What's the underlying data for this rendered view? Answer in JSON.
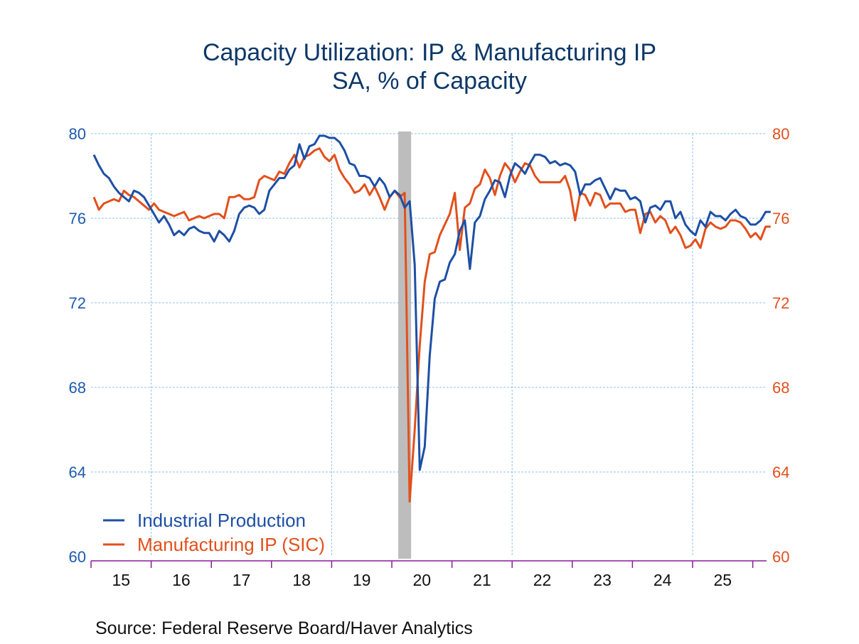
{
  "chart_data": {
    "type": "line",
    "title": "Capacity Utilization: IP & Manufacturing IP",
    "subtitle": "SA, % of Capacity",
    "source": "Source:  Federal Reserve Board/Haver Analytics",
    "xlabel": "",
    "ylabel_left": "",
    "ylabel_right": "",
    "x_start": "2015-01",
    "frequency": "monthly",
    "x_tick_labels": [
      "15",
      "16",
      "17",
      "18",
      "19",
      "20",
      "21",
      "22",
      "23",
      "24",
      "25"
    ],
    "ylim": [
      60,
      80
    ],
    "y_ticks": [
      80,
      76,
      72,
      68,
      64,
      60
    ],
    "grid": true,
    "legend_position": "bottom-left",
    "recession_shading": {
      "start": "2020-02",
      "end": "2020-04"
    },
    "series": [
      {
        "name": "Industrial Production",
        "color": "#1d4fa5",
        "axis": "left",
        "values": [
          79.0,
          78.5,
          78.1,
          77.9,
          77.5,
          77.2,
          77.0,
          76.8,
          77.3,
          77.2,
          77.0,
          76.6,
          76.2,
          75.8,
          76.1,
          75.7,
          75.2,
          75.4,
          75.2,
          75.5,
          75.6,
          75.4,
          75.3,
          75.3,
          74.9,
          75.4,
          75.2,
          74.9,
          75.4,
          76.2,
          76.5,
          76.6,
          76.5,
          76.2,
          76.4,
          77.3,
          77.6,
          77.9,
          77.9,
          78.3,
          78.5,
          79.5,
          78.8,
          79.4,
          79.5,
          79.9,
          79.9,
          79.8,
          79.8,
          79.6,
          79.2,
          78.6,
          78.5,
          78.0,
          78.0,
          77.9,
          77.5,
          77.9,
          77.6,
          77.0,
          77.3,
          77.1,
          76.5,
          76.8,
          73.8,
          64.1,
          65.2,
          69.5,
          72.2,
          73.0,
          73.1,
          73.9,
          74.3,
          75.4,
          75.9,
          73.6,
          75.8,
          76.1,
          76.9,
          77.3,
          77.8,
          77.7,
          77.0,
          78.0,
          78.6,
          78.4,
          78.1,
          78.6,
          79.0,
          79.0,
          78.9,
          78.6,
          78.7,
          78.5,
          78.6,
          78.5,
          78.2,
          77.1,
          77.6,
          77.6,
          77.8,
          77.9,
          77.4,
          76.9,
          77.4,
          77.3,
          77.3,
          76.9,
          77.0,
          76.8,
          75.8,
          76.5,
          76.6,
          76.4,
          76.8,
          76.8,
          76.0,
          76.3,
          75.7,
          75.4,
          75.2,
          75.9,
          75.6,
          76.3,
          76.1,
          76.1,
          75.9,
          76.2,
          76.4,
          76.1,
          76.0,
          75.7,
          75.7,
          75.9,
          76.3,
          76.3
        ]
      },
      {
        "name": "Manufacturing IP (SIC)",
        "color": "#e2501c",
        "axis": "right",
        "values": [
          77.0,
          76.4,
          76.7,
          76.8,
          76.9,
          76.8,
          77.3,
          77.1,
          77.0,
          76.8,
          76.6,
          76.4,
          76.7,
          76.4,
          76.3,
          76.2,
          76.1,
          76.2,
          76.3,
          75.9,
          76.0,
          76.1,
          76.0,
          76.1,
          76.2,
          76.2,
          76.0,
          77.0,
          77.0,
          77.1,
          76.9,
          76.9,
          77.0,
          77.8,
          78.0,
          77.9,
          77.8,
          78.2,
          78.1,
          78.6,
          79.0,
          78.4,
          78.9,
          79.0,
          79.2,
          79.3,
          78.9,
          78.7,
          79.0,
          78.3,
          77.9,
          77.6,
          77.2,
          77.3,
          77.6,
          77.1,
          77.5,
          77.0,
          76.4,
          77.0,
          77.3,
          77.0,
          77.2,
          62.6,
          66.0,
          70.0,
          73.0,
          74.3,
          74.4,
          75.2,
          75.7,
          76.2,
          77.2,
          74.5,
          76.5,
          76.7,
          77.4,
          77.6,
          78.3,
          77.9,
          77.1,
          78.0,
          78.6,
          78.3,
          77.7,
          78.2,
          78.6,
          78.5,
          78.0,
          77.7,
          77.7,
          77.7,
          77.7,
          77.7,
          78.0,
          77.3,
          75.9,
          77.2,
          77.1,
          76.6,
          77.2,
          77.1,
          76.5,
          76.7,
          76.7,
          76.7,
          76.3,
          76.4,
          76.4,
          75.3,
          76.2,
          76.3,
          75.8,
          76.1,
          75.9,
          75.3,
          75.6,
          75.2,
          74.6,
          74.7,
          75.0,
          74.6,
          75.5,
          75.8,
          75.6,
          75.5,
          75.6,
          75.9,
          75.9,
          75.8,
          75.5,
          75.1,
          75.3,
          75.0,
          75.6,
          75.6
        ]
      }
    ]
  }
}
